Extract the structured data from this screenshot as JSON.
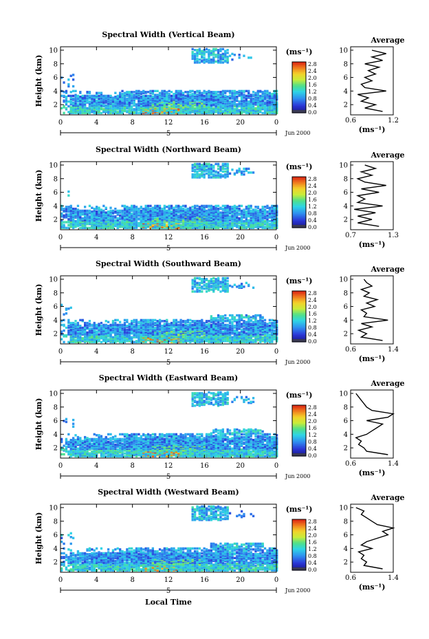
{
  "figure": {
    "xlabel": "Local Time",
    "date_label": "Jun 2000",
    "day_label": "5",
    "avg_title": "Average",
    "colorbar_unit_html": "(ms⁻¹)"
  },
  "chart_data": [
    {
      "type": "heatmap",
      "title": "Spectral Width (Vertical Beam)",
      "ylabel": "Height (km)",
      "xlim": [
        0,
        24
      ],
      "ylim": [
        0.5,
        10.5
      ],
      "xticks": [
        "0",
        "4",
        "8",
        "12",
        "16",
        "20",
        "0"
      ],
      "yticks": [
        "2",
        "4",
        "6",
        "8",
        "10"
      ],
      "colorbar": {
        "unit": "(ms⁻¹)",
        "range": [
          0.0,
          2.8
        ],
        "ticks": [
          "2.8",
          "2.4",
          "2.0",
          "1.6",
          "1.2",
          "0.8",
          "0.4",
          "0.0"
        ]
      },
      "average_profile": {
        "title": "Average",
        "xlabel": "(ms⁻¹)",
        "xticks": [
          "0.6",
          "1.2"
        ],
        "xlim": [
          0.6,
          1.2
        ],
        "yticks": [
          "2",
          "4",
          "6",
          "8",
          "10"
        ],
        "heights": [
          1,
          1.5,
          2,
          2.5,
          3,
          3.5,
          4,
          4.5,
          5,
          5.5,
          6,
          6.5,
          7,
          7.5,
          8,
          8.5,
          9,
          9.5,
          10
        ],
        "values": [
          1.05,
          0.8,
          0.95,
          0.75,
          0.85,
          0.7,
          1.1,
          0.8,
          0.75,
          0.9,
          0.8,
          0.95,
          0.85,
          1.0,
          0.8,
          1.05,
          0.9,
          1.1,
          0.9
        ]
      }
    },
    {
      "type": "heatmap",
      "title": "Spectral Width (Northward Beam)",
      "ylabel": "Height (km)",
      "xlim": [
        0,
        24
      ],
      "ylim": [
        0.5,
        10.5
      ],
      "xticks": [
        "0",
        "4",
        "8",
        "12",
        "16",
        "20",
        "0"
      ],
      "yticks": [
        "2",
        "4",
        "6",
        "8",
        "10"
      ],
      "colorbar": {
        "unit": "(ms⁻¹)",
        "range": [
          0.0,
          2.8
        ],
        "ticks": [
          "2.8",
          "2.4",
          "2.0",
          "1.6",
          "1.2",
          "0.8",
          "0.4",
          "0.0"
        ]
      },
      "average_profile": {
        "title": "Average",
        "xlabel": "(ms⁻¹)",
        "xticks": [
          "0.7",
          "1.3"
        ],
        "xlim": [
          0.7,
          1.3
        ],
        "yticks": [
          "2",
          "4",
          "6",
          "8",
          "10"
        ],
        "heights": [
          1,
          1.5,
          2,
          2.5,
          3,
          3.5,
          4,
          4.5,
          5,
          5.5,
          6,
          6.5,
          7,
          7.5,
          8,
          8.5,
          9,
          9.5,
          10
        ],
        "values": [
          1.1,
          0.8,
          1.0,
          0.8,
          1.05,
          0.75,
          1.15,
          0.8,
          0.9,
          0.8,
          1.1,
          0.85,
          1.2,
          0.9,
          0.8,
          1.0,
          0.85,
          1.05,
          0.9
        ]
      }
    },
    {
      "type": "heatmap",
      "title": "Spectral Width (Southward Beam)",
      "ylabel": "Height (km)",
      "xlim": [
        0,
        24
      ],
      "ylim": [
        0.5,
        10.5
      ],
      "xticks": [
        "0",
        "4",
        "8",
        "12",
        "16",
        "20",
        "0"
      ],
      "yticks": [
        "2",
        "4",
        "6",
        "8",
        "10"
      ],
      "colorbar": {
        "unit": "(ms⁻¹)",
        "range": [
          0.0,
          2.8
        ],
        "ticks": [
          "2.8",
          "2.4",
          "2.0",
          "1.6",
          "1.2",
          "0.8",
          "0.4",
          "0.0"
        ]
      },
      "average_profile": {
        "title": "Average",
        "xlabel": "(ms⁻¹)",
        "xticks": [
          "0.6",
          "1.4"
        ],
        "xlim": [
          0.6,
          1.4
        ],
        "yticks": [
          "2",
          "4",
          "6",
          "8",
          "10"
        ],
        "heights": [
          1,
          1.5,
          2,
          2.5,
          3,
          3.5,
          4,
          4.5,
          5,
          5.5,
          6,
          6.5,
          7,
          7.5,
          8,
          8.5,
          9,
          9.5,
          10
        ],
        "values": [
          1.2,
          0.8,
          0.9,
          0.75,
          1.0,
          0.8,
          1.3,
          0.85,
          0.9,
          0.8,
          1.05,
          0.9,
          1.1,
          0.85,
          0.95,
          0.8,
          1.0,
          0.9,
          0.85
        ]
      }
    },
    {
      "type": "heatmap",
      "title": "Spectral Width (Eastward Beam)",
      "ylabel": "Height (km)",
      "xlim": [
        0,
        24
      ],
      "ylim": [
        0.5,
        10.5
      ],
      "xticks": [
        "0",
        "4",
        "8",
        "12",
        "16",
        "20",
        "0"
      ],
      "yticks": [
        "2",
        "4",
        "6",
        "8",
        "10"
      ],
      "colorbar": {
        "unit": "(ms⁻¹)",
        "range": [
          0.0,
          2.8
        ],
        "ticks": [
          "2.8",
          "2.4",
          "2.0",
          "1.6",
          "1.2",
          "0.8",
          "0.4",
          "0.0"
        ]
      },
      "average_profile": {
        "title": "Average",
        "xlabel": "(ms⁻¹)",
        "xticks": [
          "0.6",
          "1.4"
        ],
        "xlim": [
          0.6,
          1.4
        ],
        "yticks": [
          "2",
          "4",
          "6",
          "8",
          "10"
        ],
        "heights": [
          1,
          1.5,
          2,
          2.5,
          3,
          3.5,
          4,
          4.5,
          5,
          5.5,
          6,
          6.5,
          7,
          7.5,
          8,
          8.5,
          9,
          9.5,
          10
        ],
        "values": [
          1.3,
          0.9,
          0.85,
          0.75,
          0.8,
          0.7,
          0.9,
          1.0,
          1.1,
          1.2,
          0.9,
          1.3,
          1.4,
          1.0,
          0.9,
          0.85,
          0.8,
          0.75,
          0.7
        ]
      }
    },
    {
      "type": "heatmap",
      "title": "Spectral Width (Westward Beam)",
      "ylabel": "Height (km)",
      "xlim": [
        0,
        24
      ],
      "ylim": [
        0.5,
        10.5
      ],
      "xticks": [
        "0",
        "4",
        "8",
        "12",
        "16",
        "20",
        "0"
      ],
      "yticks": [
        "2",
        "4",
        "6",
        "8",
        "10"
      ],
      "colorbar": {
        "unit": "(ms⁻¹)",
        "range": [
          0.0,
          2.8
        ],
        "ticks": [
          "2.8",
          "2.4",
          "2.0",
          "1.6",
          "1.2",
          "0.8",
          "0.4",
          "0.0"
        ]
      },
      "average_profile": {
        "title": "Average",
        "xlabel": "(ms⁻¹)",
        "xticks": [
          "0.6",
          "1.4"
        ],
        "xlim": [
          0.6,
          1.4
        ],
        "yticks": [
          "2",
          "4",
          "6",
          "8",
          "10"
        ],
        "heights": [
          1,
          1.5,
          2,
          2.5,
          3,
          3.5,
          4,
          4.5,
          5,
          5.5,
          6,
          6.5,
          7,
          7.5,
          8,
          8.5,
          9,
          9.5,
          10
        ],
        "values": [
          1.2,
          0.85,
          0.9,
          0.8,
          0.85,
          0.75,
          1.0,
          0.8,
          0.9,
          1.1,
          1.3,
          1.2,
          1.4,
          1.1,
          1.0,
          0.9,
          0.8,
          0.85,
          0.7
        ]
      }
    }
  ]
}
